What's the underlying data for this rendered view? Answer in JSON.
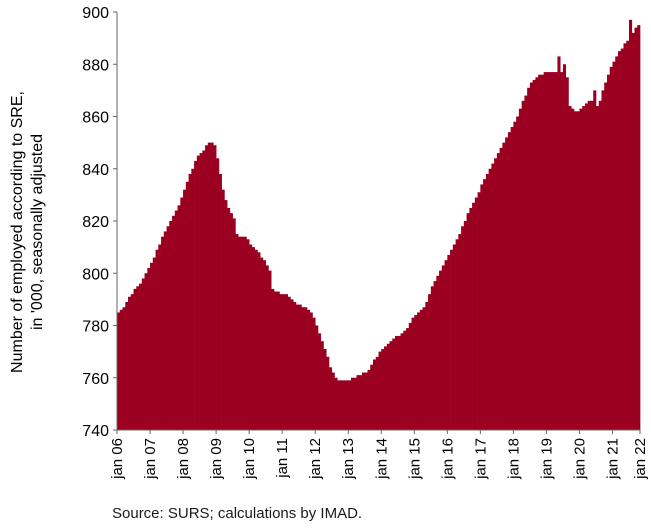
{
  "chart_data": {
    "type": "bar",
    "x_start": "jan 06",
    "x_end": "jan 22",
    "x_ticks": [
      "jan 06",
      "jan 07",
      "jan 08",
      "jan 09",
      "jan 10",
      "jan 11",
      "jan 12",
      "jan 13",
      "jan 14",
      "jan 15",
      "jan 16",
      "jan 17",
      "jan 18",
      "jan 19",
      "jan 20",
      "jan 21",
      "jan 22"
    ],
    "ylabel_line1": "Number of employed according to SRE,",
    "ylabel_line2": "in '000, seasonally adjusted",
    "ylim": [
      740,
      900
    ],
    "y_ticks": [
      740,
      760,
      780,
      800,
      820,
      840,
      860,
      880,
      900
    ],
    "values": [
      785,
      786,
      787,
      789,
      791,
      792,
      794,
      795,
      796,
      798,
      800,
      802,
      804,
      806,
      809,
      811,
      814,
      816,
      818,
      820,
      822,
      824,
      826,
      829,
      832,
      835,
      838,
      840,
      843,
      845,
      846,
      847,
      849,
      850,
      850,
      849,
      844,
      838,
      832,
      828,
      825,
      823,
      821,
      815,
      814,
      814,
      814,
      813,
      811,
      810,
      809,
      808,
      806,
      805,
      803,
      801,
      794,
      793,
      793,
      792,
      792,
      792,
      791,
      790,
      789,
      788,
      788,
      787,
      787,
      786,
      785,
      783,
      780,
      777,
      774,
      771,
      768,
      764,
      762,
      760,
      759,
      759,
      759,
      759,
      759,
      760,
      760,
      761,
      761,
      762,
      762,
      763,
      765,
      767,
      768,
      770,
      771,
      772,
      773,
      774,
      775,
      776,
      776,
      777,
      778,
      779,
      781,
      783,
      784,
      785,
      786,
      787,
      789,
      792,
      795,
      797,
      799,
      801,
      803,
      805,
      807,
      809,
      811,
      813,
      815,
      818,
      820,
      823,
      825,
      827,
      829,
      831,
      834,
      836,
      838,
      840,
      842,
      844,
      846,
      848,
      850,
      852,
      854,
      856,
      858,
      860,
      863,
      866,
      868,
      871,
      873,
      874,
      875,
      876,
      876,
      877,
      877,
      877,
      877,
      877,
      883,
      877,
      880,
      875,
      864,
      863,
      862,
      862,
      863,
      864,
      865,
      866,
      866,
      870,
      864,
      866,
      870,
      873,
      876,
      879,
      881,
      883,
      885,
      886,
      888,
      889,
      897,
      892,
      894,
      895
    ],
    "bar_color": "#9b0020",
    "grid": false
  },
  "source": "Source: SURS; calculations by IMAD."
}
